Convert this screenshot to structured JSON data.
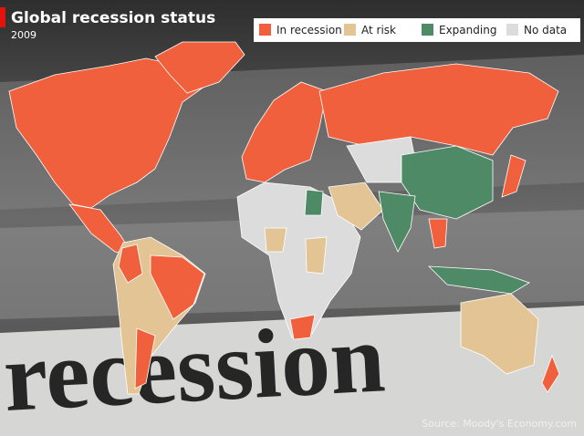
{
  "header": {
    "title": "Global recession status",
    "subtitle": "2009"
  },
  "legend": [
    {
      "name": "In recession",
      "color": "#f0603c"
    },
    {
      "name": "At risk",
      "color": "#e3c595"
    },
    {
      "name": "Expanding",
      "color": "#4f8a66"
    },
    {
      "name": "No data",
      "color": "#dcdcdc"
    }
  ],
  "background_text": "recession",
  "source": "Source: Moody's Economy.com"
}
